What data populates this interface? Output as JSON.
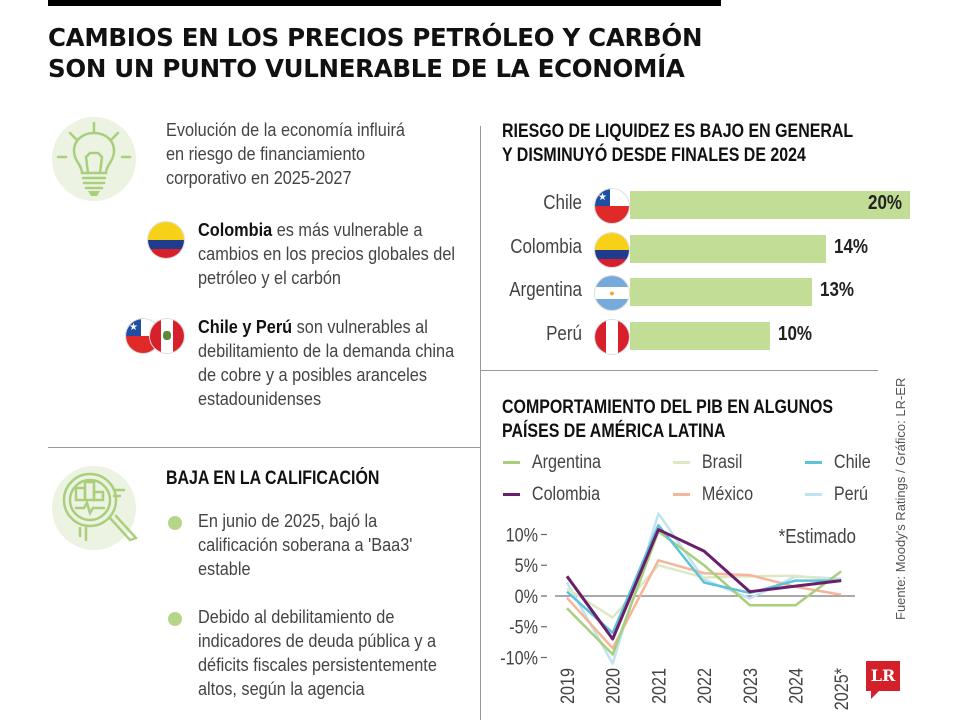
{
  "headline": {
    "line1": "CAMBIOS EN LOS PRECIOS PETRÓLEO Y CARBÓN",
    "line2": "SON UN PUNTO VULNERABLE DE LA ECONOMÍA"
  },
  "left": {
    "intro": "Evolución de la economía influirá en riesgo de financiamiento corporativo en 2025-2027",
    "colombia_bold": "Colombia",
    "colombia_rest": " es más vulnerable a cambios en los precios globales del petróleo y el carbón",
    "chileperu_bold": "Chile y Perú",
    "chileperu_rest": " son vulnerables al debilitamiento de la demanda china de cobre y a posibles aranceles estadounidenses",
    "rating_title": "BAJA EN LA CALIFICACIÓN",
    "bullets": [
      "En junio de 2025, bajó la calificación soberana a 'Baa3' estable",
      "Debido al debilitamiento de indicadores de deuda pública y a déficits fiscales persistentemente altos, según la agencia"
    ],
    "icons": [
      "lightbulb-icon",
      "magnifier-chart-icon"
    ]
  },
  "colors": {
    "accent_green": "#b5d68a",
    "bar_green": "#c2de96",
    "brand_red": "#d4202a"
  },
  "source": "Fuente: Moody's Ratings / Gráfico: LR-ER",
  "logo": "LR",
  "chart_data": [
    {
      "type": "bar",
      "orientation": "horizontal",
      "title": "RIESGO DE LIQUIDEZ ES BAJO EN GENERAL Y DISMINUYÓ DESDE FINALES DE 2024",
      "title_line1": "RIESGO DE LIQUIDEZ ES BAJO EN GENERAL",
      "title_line2": "Y DISMINUYÓ DESDE FINALES DE 2024",
      "categories": [
        "Chile",
        "Colombia",
        "Argentina",
        "Perú"
      ],
      "values": [
        20,
        14,
        13,
        10
      ],
      "labels": [
        "20%",
        "14%",
        "13%",
        "10%"
      ],
      "unit": "%",
      "xlim": [
        0,
        20
      ]
    },
    {
      "type": "line",
      "title": "COMPORTAMIENTO DEL PIB EN ALGUNOS PAÍSES DE AMÉRICA LATINA",
      "title_line1": "COMPORTAMIENTO DEL PIB EN ALGUNOS",
      "title_line2": "PAÍSES DE AMÉRICA LATINA",
      "x": [
        "2019",
        "2020",
        "2021",
        "2022",
        "2023",
        "2024",
        "2025*"
      ],
      "yticks": [
        "10%",
        "5%",
        "0%",
        "-5%",
        "-10%"
      ],
      "ytick_values": [
        10,
        5,
        0,
        -5,
        -10
      ],
      "ylim": [
        -11.5,
        13.5
      ],
      "annotation": "*Estimado",
      "legend_position": "top",
      "series": [
        {
          "name": "Argentina",
          "color": "#a9cf7c",
          "values": [
            -2.0,
            -9.5,
            10.5,
            5.0,
            -1.5,
            -1.5,
            4.0
          ]
        },
        {
          "name": "Brasil",
          "color": "#dde9c4",
          "values": [
            1.2,
            -3.5,
            5.0,
            3.0,
            3.2,
            3.3,
            2.5
          ]
        },
        {
          "name": "Chile",
          "color": "#5ec3d6",
          "values": [
            0.7,
            -6.0,
            11.5,
            2.2,
            0.5,
            2.5,
            2.5
          ]
        },
        {
          "name": "Colombia",
          "color": "#6a1f6b",
          "values": [
            3.2,
            -7.0,
            10.8,
            7.3,
            0.7,
            1.6,
            2.5
          ]
        },
        {
          "name": "México",
          "color": "#f6b59a",
          "values": [
            -0.3,
            -8.5,
            5.8,
            3.7,
            3.4,
            1.5,
            0.2
          ]
        },
        {
          "name": "Perú",
          "color": "#bfe3ef",
          "values": [
            2.2,
            -11.0,
            13.4,
            2.7,
            -0.4,
            3.2,
            2.8
          ]
        }
      ]
    }
  ]
}
